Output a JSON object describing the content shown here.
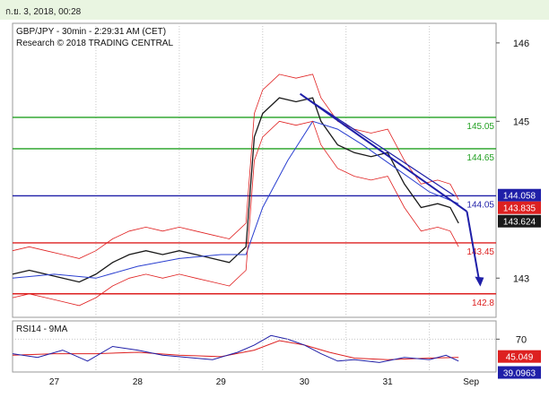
{
  "header": {
    "timestamp": "ก.ย. 3, 2018, 00:28"
  },
  "chart_data": [
    {
      "type": "line",
      "title": "GBP/JPY - 30min - 2:29:31 AM (CET)",
      "subtitle": "Research © 2018 TRADING CENTRAL",
      "ylim": [
        142.5,
        146.25
      ],
      "yticks": [
        143,
        145,
        146
      ],
      "y_tick_labels": [
        "143",
        "145",
        "146"
      ],
      "x_tick_labels": [
        "27",
        "28",
        "29",
        "30",
        "31",
        "Sep"
      ],
      "x_tick_values": [
        0.5,
        1.5,
        2.5,
        3.5,
        4.5,
        5.5
      ],
      "xlim": [
        0,
        5.8
      ],
      "series": [
        {
          "values": [
            [
              0.0,
              143.05
            ],
            [
              0.2,
              143.1
            ],
            [
              0.4,
              143.05
            ],
            [
              0.6,
              143.0
            ],
            [
              0.8,
              142.95
            ],
            [
              1.0,
              143.05
            ],
            [
              1.2,
              143.2
            ],
            [
              1.4,
              143.3
            ],
            [
              1.6,
              143.35
            ],
            [
              1.8,
              143.3
            ],
            [
              2.0,
              143.35
            ],
            [
              2.2,
              143.3
            ],
            [
              2.4,
              143.25
            ],
            [
              2.6,
              143.2
            ],
            [
              2.8,
              143.4
            ],
            [
              2.9,
              144.8
            ],
            [
              3.0,
              145.1
            ],
            [
              3.2,
              145.3
            ],
            [
              3.4,
              145.25
            ],
            [
              3.6,
              145.3
            ],
            [
              3.7,
              145.0
            ],
            [
              3.9,
              144.7
            ],
            [
              4.1,
              144.6
            ],
            [
              4.3,
              144.55
            ],
            [
              4.5,
              144.6
            ],
            [
              4.7,
              144.2
            ],
            [
              4.9,
              143.9
            ],
            [
              5.1,
              143.95
            ],
            [
              5.25,
              143.9
            ],
            [
              5.35,
              143.7
            ]
          ]
        },
        {
          "values": [
            [
              0.0,
              143.0
            ],
            [
              0.5,
              143.05
            ],
            [
              1.0,
              143.0
            ],
            [
              1.5,
              143.15
            ],
            [
              2.0,
              143.25
            ],
            [
              2.5,
              143.3
            ],
            [
              2.8,
              143.3
            ],
            [
              3.0,
              143.9
            ],
            [
              3.3,
              144.5
            ],
            [
              3.6,
              145.0
            ],
            [
              3.9,
              144.9
            ],
            [
              4.2,
              144.7
            ],
            [
              4.6,
              144.4
            ],
            [
              5.0,
              144.1
            ],
            [
              5.35,
              143.95
            ]
          ]
        }
      ],
      "horizontal_lines": [
        {
          "value": 145.05,
          "label": "145.05",
          "color": "#22a022"
        },
        {
          "value": 144.65,
          "label": "144.65",
          "color": "#22a022"
        },
        {
          "value": 144.05,
          "label": "144.05",
          "color": "#1f1fa8"
        },
        {
          "value": 143.45,
          "label": "143.45",
          "color": "#dd2020"
        },
        {
          "value": 142.8,
          "label": "142.8",
          "color": "#dd2020"
        }
      ],
      "price_tags": [
        {
          "value": 144.058,
          "label": "144.058",
          "bg": "#1f1fa8",
          "fg": "#ffffff"
        },
        {
          "value": 143.835,
          "label": "143.835",
          "bg": "#dd2020",
          "fg": "#ffffff"
        },
        {
          "value": 143.624,
          "label": "143.624",
          "bg": "#1a1a1a",
          "fg": "#ffffff"
        }
      ],
      "colors": {
        "price": "#1a1a1a",
        "band": "#e02020",
        "ma": "#2a3fd0",
        "trend": "#1f1fa8",
        "arrow": "#1f1fa8"
      }
    },
    {
      "type": "line",
      "title": "RSI14 - 9MA",
      "ylim": [
        25,
        95
      ],
      "yticks": [
        70
      ],
      "y_tick_labels": [
        "70"
      ],
      "series": [
        {
          "values": [
            [
              0.0,
              50
            ],
            [
              0.3,
              45
            ],
            [
              0.6,
              55
            ],
            [
              0.9,
              40
            ],
            [
              1.2,
              60
            ],
            [
              1.5,
              55
            ],
            [
              1.8,
              48
            ],
            [
              2.1,
              45
            ],
            [
              2.4,
              42
            ],
            [
              2.7,
              52
            ],
            [
              2.9,
              62
            ],
            [
              3.1,
              75
            ],
            [
              3.3,
              70
            ],
            [
              3.5,
              62
            ],
            [
              3.7,
              50
            ],
            [
              3.9,
              40
            ],
            [
              4.1,
              42
            ],
            [
              4.4,
              38
            ],
            [
              4.7,
              45
            ],
            [
              5.0,
              42
            ],
            [
              5.2,
              48
            ],
            [
              5.35,
              40
            ]
          ]
        },
        {
          "values": [
            [
              0.0,
              48
            ],
            [
              0.5,
              50
            ],
            [
              1.0,
              50
            ],
            [
              1.5,
              52
            ],
            [
              2.0,
              48
            ],
            [
              2.5,
              46
            ],
            [
              2.9,
              55
            ],
            [
              3.2,
              68
            ],
            [
              3.5,
              62
            ],
            [
              3.8,
              52
            ],
            [
              4.1,
              44
            ],
            [
              4.5,
              42
            ],
            [
              5.0,
              44
            ],
            [
              5.35,
              45
            ]
          ]
        }
      ],
      "price_tags": [
        {
          "value": 45.049,
          "label": "45.049",
          "bg": "#dd2020",
          "fg": "#ffffff"
        },
        {
          "value": 39.0963,
          "label": "39.0963",
          "bg": "#1f1fa8",
          "fg": "#ffffff"
        }
      ],
      "colors": {
        "rsi": "#1f1fa8",
        "ma": "#dd2020"
      }
    }
  ]
}
